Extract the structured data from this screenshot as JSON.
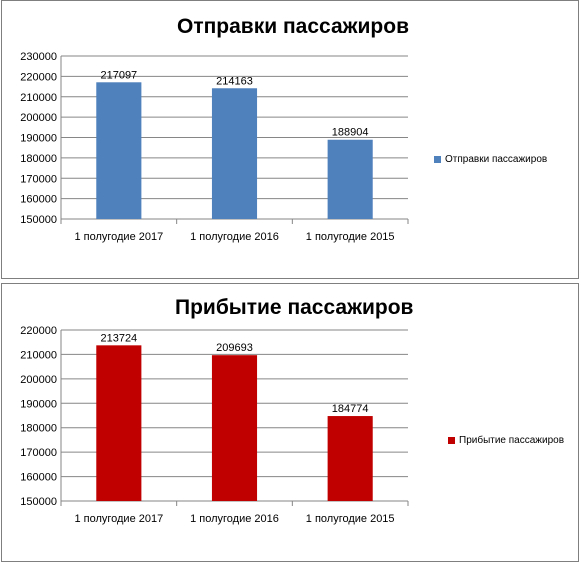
{
  "chart_data": [
    {
      "type": "bar",
      "title": "Отправки пассажиров",
      "categories": [
        "1 полугодие 2017",
        "1 полугодие 2016",
        "1 полугодие 2015"
      ],
      "series": [
        {
          "name": "Отправки пассажиров",
          "values": [
            217097,
            214163,
            188904
          ]
        }
      ],
      "data_labels": [
        "217097",
        "214163",
        "188904"
      ],
      "ylim": [
        150000,
        230000
      ],
      "yticks": [
        150000,
        160000,
        170000,
        180000,
        190000,
        200000,
        210000,
        220000,
        230000
      ],
      "grid": true,
      "legend": "right",
      "color": "#4f81bd"
    },
    {
      "type": "bar",
      "title": "Прибытие пассажиров",
      "categories": [
        "1 полугодие 2017",
        "1 полугодие 2016",
        "1 полугодие 2015"
      ],
      "series": [
        {
          "name": "Прибытие пассажиров",
          "values": [
            213724,
            209693,
            184774
          ]
        }
      ],
      "data_labels": [
        "213724",
        "209693",
        "184774"
      ],
      "ylim": [
        150000,
        220000
      ],
      "yticks": [
        150000,
        160000,
        170000,
        180000,
        190000,
        200000,
        210000,
        220000
      ],
      "grid": true,
      "legend": "right",
      "color": "#c00000"
    }
  ]
}
